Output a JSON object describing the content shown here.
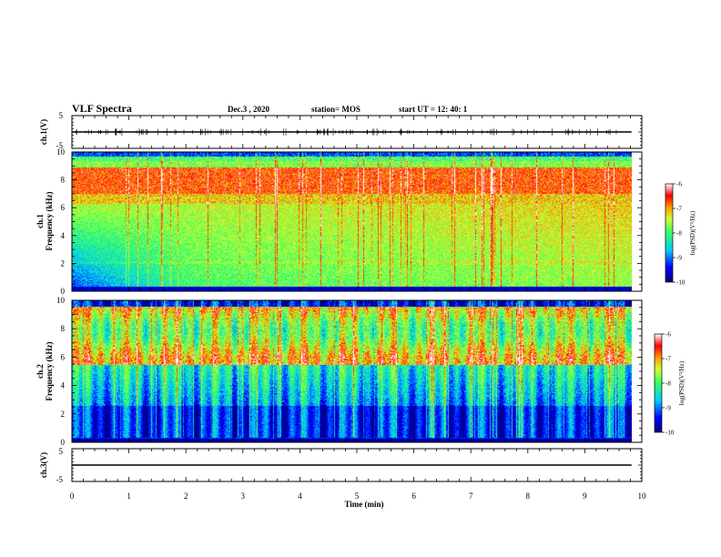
{
  "header": {
    "title": "VLF Spectra",
    "date": "Dec.3  , 2020",
    "station": "station= MOS",
    "start": "start  UT =   12: 40: 1"
  },
  "colors": {
    "colormap": [
      "#00007a",
      "#0000ff",
      "#00c8ff",
      "#33ff66",
      "#ccff33",
      "#ff9900",
      "#ff0000",
      "#ffffff"
    ],
    "axes": "#000000",
    "trace": "#000000"
  },
  "chart_data": [
    {
      "type": "line",
      "panel": "ch1-waveform",
      "ylabel": "ch.1(V)",
      "ylim": [
        -5,
        5
      ],
      "yticks": [
        "5",
        "-5"
      ],
      "xlim": [
        0,
        10
      ],
      "series": [
        {
          "x": [
            0,
            9.82
          ],
          "y": [
            0,
            0
          ]
        }
      ]
    },
    {
      "type": "heatmap",
      "panel": "ch1-spectrogram",
      "ylabel_line1": "ch.1",
      "ylabel_line2": "Frequency (kHz)",
      "ylim": [
        0,
        10
      ],
      "yticks": [
        "0",
        "2",
        "4",
        "6",
        "8",
        "10"
      ],
      "xlim": [
        0,
        10
      ],
      "data_extent_min": 9.82,
      "colorbar": {
        "label": "log(PSD)(V²/Hz)",
        "ticks": [
          "-6",
          "-7",
          "-8",
          "-9",
          "-10"
        ],
        "range": [
          -10,
          -6
        ]
      }
    },
    {
      "type": "heatmap",
      "panel": "ch2-spectrogram",
      "ylabel_line1": "ch.2",
      "ylabel_line2": "Frequency (kHz)",
      "ylim": [
        0,
        10
      ],
      "yticks": [
        "0",
        "2",
        "4",
        "6",
        "8",
        "10"
      ],
      "xlim": [
        0,
        10
      ],
      "data_extent_min": 9.82,
      "colorbar": {
        "label": "log(PSD)(V²/Hz)",
        "ticks": [
          "-6",
          "-7",
          "-8",
          "-9",
          "-10"
        ],
        "range": [
          -10,
          -6
        ]
      }
    },
    {
      "type": "line",
      "panel": "ch3-waveform",
      "ylabel": "ch.3(V)",
      "ylim": [
        -5,
        5
      ],
      "yticks": [
        "5",
        "-5"
      ],
      "xlim": [
        0,
        10
      ],
      "xticks": [
        "0",
        "1",
        "2",
        "3",
        "4",
        "5",
        "6",
        "7",
        "8",
        "9",
        "10"
      ],
      "xlabel": "Time (min)",
      "series": [
        {
          "x": [
            0,
            9.82
          ],
          "y": [
            0,
            0
          ]
        }
      ]
    }
  ]
}
